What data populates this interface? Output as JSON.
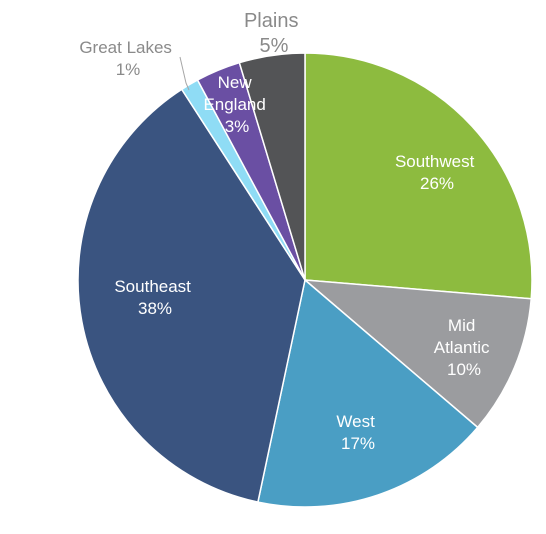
{
  "chart_data": {
    "type": "pie",
    "title": "",
    "start_angle_deg": 0,
    "direction": "clockwise",
    "slices": [
      {
        "label": "Southwest",
        "pct_text": "26%",
        "value": 26.5,
        "color": "#8dbb3f",
        "label_position": "inside"
      },
      {
        "label": "Mid Atlantic",
        "pct_text": "10%",
        "value": 10.0,
        "color": "#9b9c9f",
        "label_position": "inside"
      },
      {
        "label": "West",
        "pct_text": "17%",
        "value": 17.2,
        "color": "#4a9ec4",
        "label_position": "inside"
      },
      {
        "label": "Southeast",
        "pct_text": "38%",
        "value": 37.8,
        "color": "#3a5480",
        "label_position": "inside"
      },
      {
        "label": "Great Lakes",
        "pct_text": "1%",
        "value": 1.3,
        "color": "#8fdcf5",
        "label_position": "outside"
      },
      {
        "label": "New England",
        "pct_text": "3%",
        "value": 3.2,
        "color": "#6a4fa3",
        "label_position": "inside"
      },
      {
        "label": "Plains",
        "pct_text": "5%",
        "value": 4.7,
        "color": "#535456",
        "label_position": "outside"
      }
    ]
  }
}
